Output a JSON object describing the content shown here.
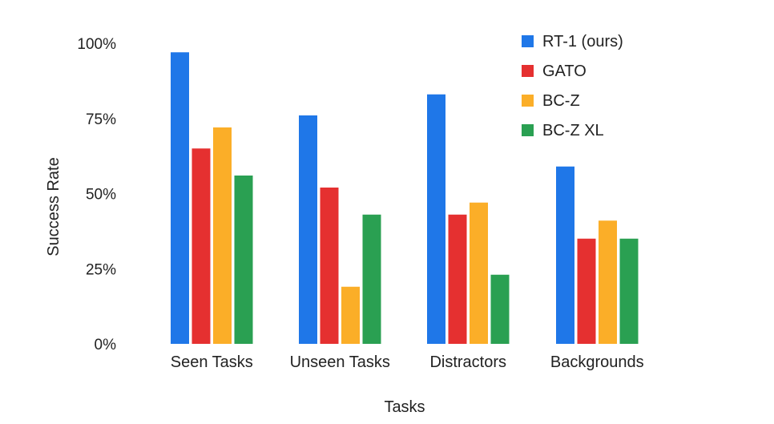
{
  "chart_data": {
    "type": "bar",
    "xlabel": "Tasks",
    "ylabel": "Success Rate",
    "ylim": [
      0,
      100
    ],
    "yticks": [
      0,
      25,
      50,
      75,
      100
    ],
    "ytick_labels": [
      "0%",
      "25%",
      "50%",
      "75%",
      "100%"
    ],
    "grid": false,
    "legend_position": "top-right",
    "categories": [
      "Seen Tasks",
      "Unseen Tasks",
      "Distractors",
      "Backgrounds"
    ],
    "series": [
      {
        "name": "RT-1 (ours)",
        "color": "#1f77e8",
        "values": [
          97,
          76,
          83,
          59
        ]
      },
      {
        "name": "GATO",
        "color": "#e53030",
        "values": [
          65,
          52,
          43,
          35
        ]
      },
      {
        "name": "BC-Z",
        "color": "#fbae28",
        "values": [
          72,
          19,
          47,
          41
        ]
      },
      {
        "name": "BC-Z XL",
        "color": "#2aa052",
        "values": [
          56,
          43,
          23,
          35
        ]
      }
    ]
  }
}
